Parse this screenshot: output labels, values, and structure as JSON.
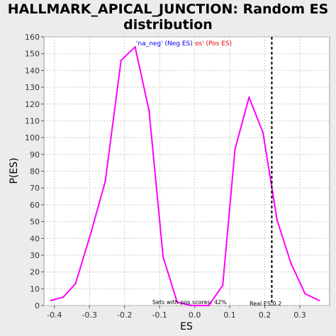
{
  "chart_data": {
    "type": "line",
    "title_line1": "HALLMARK_APICAL_JUNCTION: Random ES",
    "title_line2": "distribution",
    "xlabel": "ES",
    "ylabel": "P(ES)",
    "xlim": [
      -0.43,
      0.385
    ],
    "ylim": [
      0,
      160
    ],
    "xticks": [
      -0.4,
      -0.3,
      -0.2,
      -0.1,
      0.0,
      0.1,
      0.2,
      0.3
    ],
    "xtick_labels": [
      "-0.4",
      "-0.3",
      "-0.2",
      "-0.1",
      "0.0",
      "0.1",
      "0.2",
      "0.3"
    ],
    "yticks": [
      0,
      10,
      20,
      30,
      40,
      50,
      60,
      70,
      80,
      90,
      100,
      110,
      120,
      130,
      140,
      150,
      160
    ],
    "grid": true,
    "series": [
      {
        "name": "'na_neg' (Neg ES)",
        "color": "#ff00ff",
        "x": [
          -0.41,
          -0.375,
          -0.34,
          -0.295,
          -0.255,
          -0.21,
          -0.17,
          -0.13,
          -0.09,
          -0.05,
          -0.01,
          0.04,
          0.08,
          0.115,
          0.155,
          0.195,
          0.235,
          0.275,
          0.315,
          0.355
        ],
        "y": [
          3,
          5,
          13,
          44,
          74,
          146,
          154,
          116,
          29,
          2,
          0,
          0,
          12,
          93,
          124,
          103,
          51,
          25,
          7,
          3
        ]
      }
    ],
    "legend": {
      "placement": "top",
      "neg_label": "'na_neg' (Neg ES)",
      "pos_label": "os' (Pos ES)",
      "neg_color": "#0000ee",
      "pos_color": "#ee0000"
    },
    "real_es": {
      "value": 0.22,
      "label": "Real ES 0.2"
    },
    "annotation": "Sets with pos scores: 42%"
  }
}
